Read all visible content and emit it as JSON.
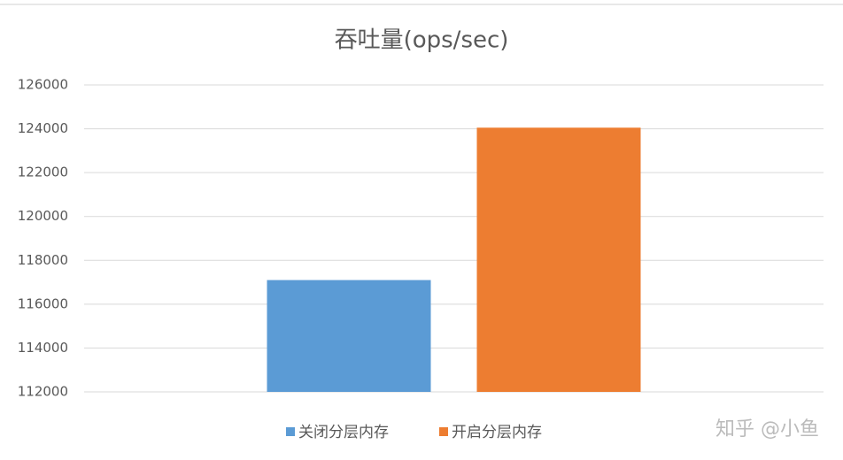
{
  "chart_data": {
    "type": "bar",
    "title": "吞吐量(ops/sec)",
    "categories": [
      null
    ],
    "series": [
      {
        "name": "关闭分层内存",
        "color": "#5b9bd5",
        "values": [
          117100
        ]
      },
      {
        "name": "开启分层内存",
        "color": "#ed7d31",
        "values": [
          124050
        ]
      }
    ],
    "ylim": [
      112000,
      126000
    ],
    "yticks": [
      112000,
      114000,
      116000,
      118000,
      120000,
      122000,
      124000,
      126000
    ],
    "grid": true,
    "legend": "bottom"
  },
  "watermark": "知乎 @小鱼"
}
